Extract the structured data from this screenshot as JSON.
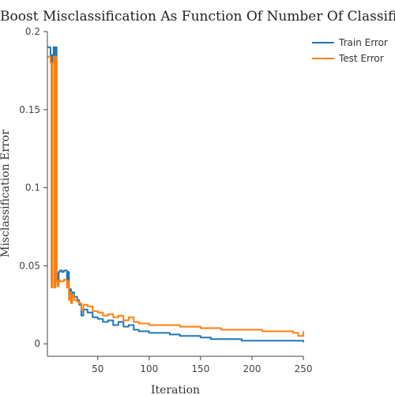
{
  "chart_data": {
    "type": "line",
    "title": "AdaBoost Misclassification As Function Of Number Of Classifiers",
    "xlabel": "Iteration",
    "ylabel": "Misclassification Error",
    "xlim": [
      1,
      250
    ],
    "ylim": [
      -0.008,
      0.2
    ],
    "xticks": [
      50,
      100,
      150,
      200,
      250
    ],
    "yticks": [
      0,
      0.05,
      0.1,
      0.15,
      0.2
    ],
    "xtick_labels": [
      "50",
      "100",
      "150",
      "200",
      "250"
    ],
    "ytick_labels": [
      "0",
      "0.05",
      "0.1",
      "0.15",
      "0.2"
    ],
    "grid": false,
    "legend": "top-right",
    "series": [
      {
        "name": "Train Error",
        "color": "#1f77b4",
        "x": [
          1,
          3,
          4,
          5,
          6,
          7,
          8,
          9,
          10,
          11,
          12,
          13,
          15,
          17,
          20,
          21,
          22,
          23,
          24,
          25,
          27,
          30,
          32,
          34,
          36,
          40,
          45,
          50,
          55,
          60,
          65,
          70,
          75,
          80,
          85,
          90,
          95,
          100,
          110,
          120,
          130,
          140,
          150,
          160,
          170,
          180,
          190,
          200,
          210,
          220,
          230,
          240,
          250
        ],
        "y": [
          0.19,
          0.19,
          0.185,
          0.04,
          0.185,
          0.19,
          0.037,
          0.19,
          0.045,
          0.04,
          0.046,
          0.047,
          0.046,
          0.047,
          0.04,
          0.046,
          0.03,
          0.035,
          0.027,
          0.033,
          0.03,
          0.028,
          0.025,
          0.018,
          0.022,
          0.02,
          0.017,
          0.016,
          0.014,
          0.015,
          0.012,
          0.014,
          0.011,
          0.012,
          0.009,
          0.008,
          0.008,
          0.007,
          0.007,
          0.006,
          0.005,
          0.005,
          0.004,
          0.003,
          0.003,
          0.003,
          0.002,
          0.002,
          0.002,
          0.002,
          0.002,
          0.002,
          0.001
        ]
      },
      {
        "name": "Test Error",
        "color": "#ff7f0e",
        "x": [
          1,
          3,
          4,
          5,
          6,
          7,
          8,
          9,
          10,
          11,
          12,
          13,
          15,
          17,
          20,
          21,
          22,
          23,
          24,
          25,
          27,
          30,
          32,
          34,
          36,
          40,
          45,
          50,
          55,
          60,
          65,
          70,
          75,
          80,
          85,
          90,
          95,
          100,
          110,
          120,
          130,
          140,
          150,
          160,
          170,
          180,
          190,
          200,
          210,
          220,
          230,
          240,
          245,
          250
        ],
        "y": [
          0.184,
          0.184,
          0.18,
          0.036,
          0.18,
          0.184,
          0.036,
          0.184,
          0.04,
          0.037,
          0.041,
          0.04,
          0.04,
          0.041,
          0.036,
          0.04,
          0.028,
          0.033,
          0.026,
          0.031,
          0.028,
          0.027,
          0.026,
          0.022,
          0.025,
          0.024,
          0.021,
          0.02,
          0.018,
          0.019,
          0.017,
          0.018,
          0.015,
          0.017,
          0.014,
          0.013,
          0.013,
          0.012,
          0.012,
          0.012,
          0.011,
          0.011,
          0.01,
          0.01,
          0.009,
          0.009,
          0.009,
          0.009,
          0.008,
          0.008,
          0.008,
          0.007,
          0.005,
          0.008
        ]
      }
    ]
  }
}
